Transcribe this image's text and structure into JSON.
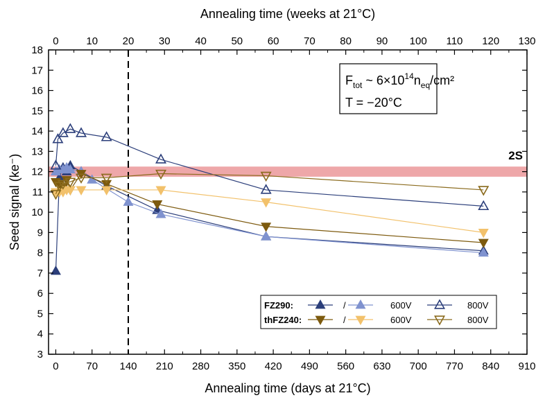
{
  "chart_data": {
    "type": "line",
    "xlabel": "Annealing time (days at 21°C)",
    "x2label": "Annealing time (weeks at 21°C)",
    "ylabel": "Seed signal (ke⁻)",
    "xlim": [
      -14,
      910
    ],
    "ylim": [
      3,
      18
    ],
    "x_ticks": [
      0,
      70,
      140,
      210,
      280,
      350,
      420,
      490,
      560,
      630,
      700,
      770,
      840,
      910
    ],
    "x2_ticks": [
      0,
      10,
      20,
      30,
      40,
      50,
      60,
      70,
      80,
      90,
      100,
      110,
      120,
      130
    ],
    "y_ticks": [
      3,
      4,
      5,
      6,
      7,
      8,
      9,
      10,
      11,
      12,
      13,
      14,
      15,
      16,
      17,
      18
    ],
    "annotation_fluence": {
      "prefix": "F",
      "sub1": "tot",
      "mid": " ~ 6×10",
      "sup": "14",
      "unit": "n",
      "sub2": "eq",
      "tail": "/cm²"
    },
    "annotation_temperature": "T = −20°C",
    "reference_band": {
      "label": "2S",
      "y_center": 12.0,
      "y_range": [
        11.75,
        12.25
      ],
      "color": "#e8898c"
    },
    "vertical_line_x": 140,
    "legend": {
      "row1_label": "FZ290:",
      "row2_label": "thFZ240:",
      "slash": "/",
      "v600": "600V",
      "v800": "800V"
    },
    "series": [
      {
        "group": "FZ290",
        "voltage": "—",
        "marker": "triangle-up-filled",
        "color": "#2b3e7a",
        "x": [
          0,
          7,
          14,
          21,
          28,
          49,
          98,
          196,
          406,
          826
        ],
        "y": [
          7.1,
          11.7,
          12.2,
          12.0,
          12.3,
          12.0,
          11.3,
          10.1,
          8.8,
          8.1
        ]
      },
      {
        "group": "FZ290",
        "voltage": "600V",
        "marker": "triangle-up-filled",
        "color": "#7f92cf",
        "x": [
          0,
          7,
          14,
          21,
          28,
          49,
          70,
          140,
          203,
          406,
          826
        ],
        "y": [
          12.0,
          12.1,
          12.1,
          12.2,
          12.1,
          12.0,
          11.6,
          10.5,
          9.9,
          8.8,
          8.0
        ]
      },
      {
        "group": "FZ290",
        "voltage": "800V",
        "marker": "triangle-up-open",
        "color": "#2b3e7a",
        "x": [
          0,
          4,
          14,
          28,
          49,
          98,
          203,
          406,
          826
        ],
        "y": [
          12.3,
          13.6,
          13.9,
          14.1,
          13.9,
          13.7,
          12.6,
          11.1,
          10.3
        ]
      },
      {
        "group": "thFZ240",
        "voltage": "—",
        "marker": "triangle-down-filled",
        "color": "#7d5a0e",
        "x": [
          0,
          7,
          14,
          21,
          28,
          49,
          98,
          196,
          406,
          826
        ],
        "y": [
          11.5,
          11.4,
          11.2,
          11.6,
          11.1,
          11.9,
          11.4,
          10.4,
          9.3,
          8.5
        ]
      },
      {
        "group": "thFZ240",
        "voltage": "600V",
        "marker": "triangle-down-filled",
        "color": "#f2c16b",
        "x": [
          0,
          7,
          14,
          21,
          28,
          49,
          98,
          203,
          406,
          826
        ],
        "y": [
          11.0,
          11.0,
          11.0,
          11.1,
          11.1,
          11.1,
          11.1,
          11.1,
          10.5,
          9.0
        ]
      },
      {
        "group": "thFZ240",
        "voltage": "800V",
        "marker": "triangle-down-open",
        "color": "#8a6a1c",
        "x": [
          0,
          7,
          14,
          28,
          49,
          98,
          203,
          406,
          826
        ],
        "y": [
          10.9,
          11.3,
          11.4,
          11.5,
          11.7,
          11.7,
          11.9,
          11.8,
          11.1
        ]
      }
    ]
  }
}
